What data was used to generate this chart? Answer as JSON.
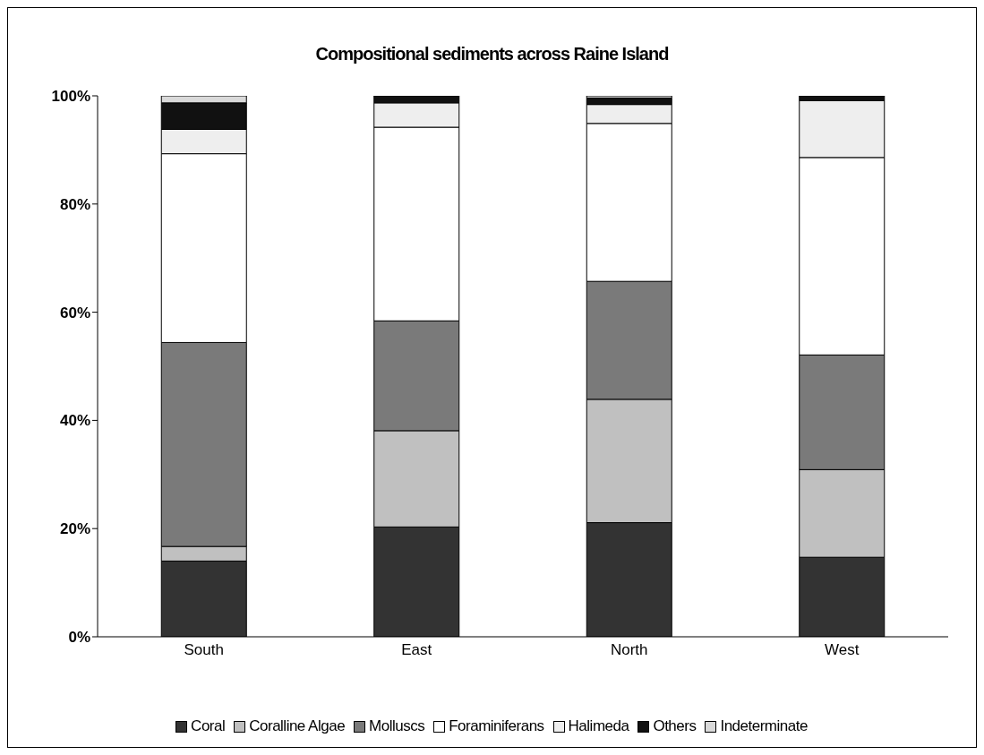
{
  "chart_data": {
    "type": "bar",
    "title": "Compositional sediments across Raine Island",
    "categories": [
      "South",
      "East",
      "North",
      "West"
    ],
    "stacked": true,
    "series": [
      {
        "name": "Coral",
        "color": "#333333",
        "values": [
          14.0,
          20.3,
          21.1,
          14.7
        ]
      },
      {
        "name": "Coralline Algae",
        "color": "#c0c0c0",
        "values": [
          2.7,
          17.8,
          22.8,
          16.2
        ]
      },
      {
        "name": "Molluscs",
        "color": "#7a7a7a",
        "values": [
          37.7,
          20.3,
          21.8,
          21.2
        ]
      },
      {
        "name": "Foraminiferans",
        "color": "#ffffff",
        "values": [
          34.9,
          35.8,
          29.2,
          36.5
        ]
      },
      {
        "name": "Halimeda",
        "color": "#eeeeee",
        "values": [
          4.5,
          4.5,
          3.5,
          10.5
        ]
      },
      {
        "name": "Others",
        "color": "#111111",
        "values": [
          4.9,
          1.3,
          1.2,
          0.9
        ]
      },
      {
        "name": "Indeterminate",
        "color": "#d9d9d9",
        "values": [
          1.3,
          0,
          0.4,
          0
        ]
      }
    ],
    "ylim": [
      0,
      100
    ],
    "yticks": [
      {
        "value": 0,
        "label": "0%"
      },
      {
        "value": 20,
        "label": "20%"
      },
      {
        "value": 40,
        "label": "40%"
      },
      {
        "value": 60,
        "label": "60%"
      },
      {
        "value": 80,
        "label": "80%"
      },
      {
        "value": 100,
        "label": "100%"
      }
    ],
    "grid": false,
    "legend": "bottom"
  }
}
